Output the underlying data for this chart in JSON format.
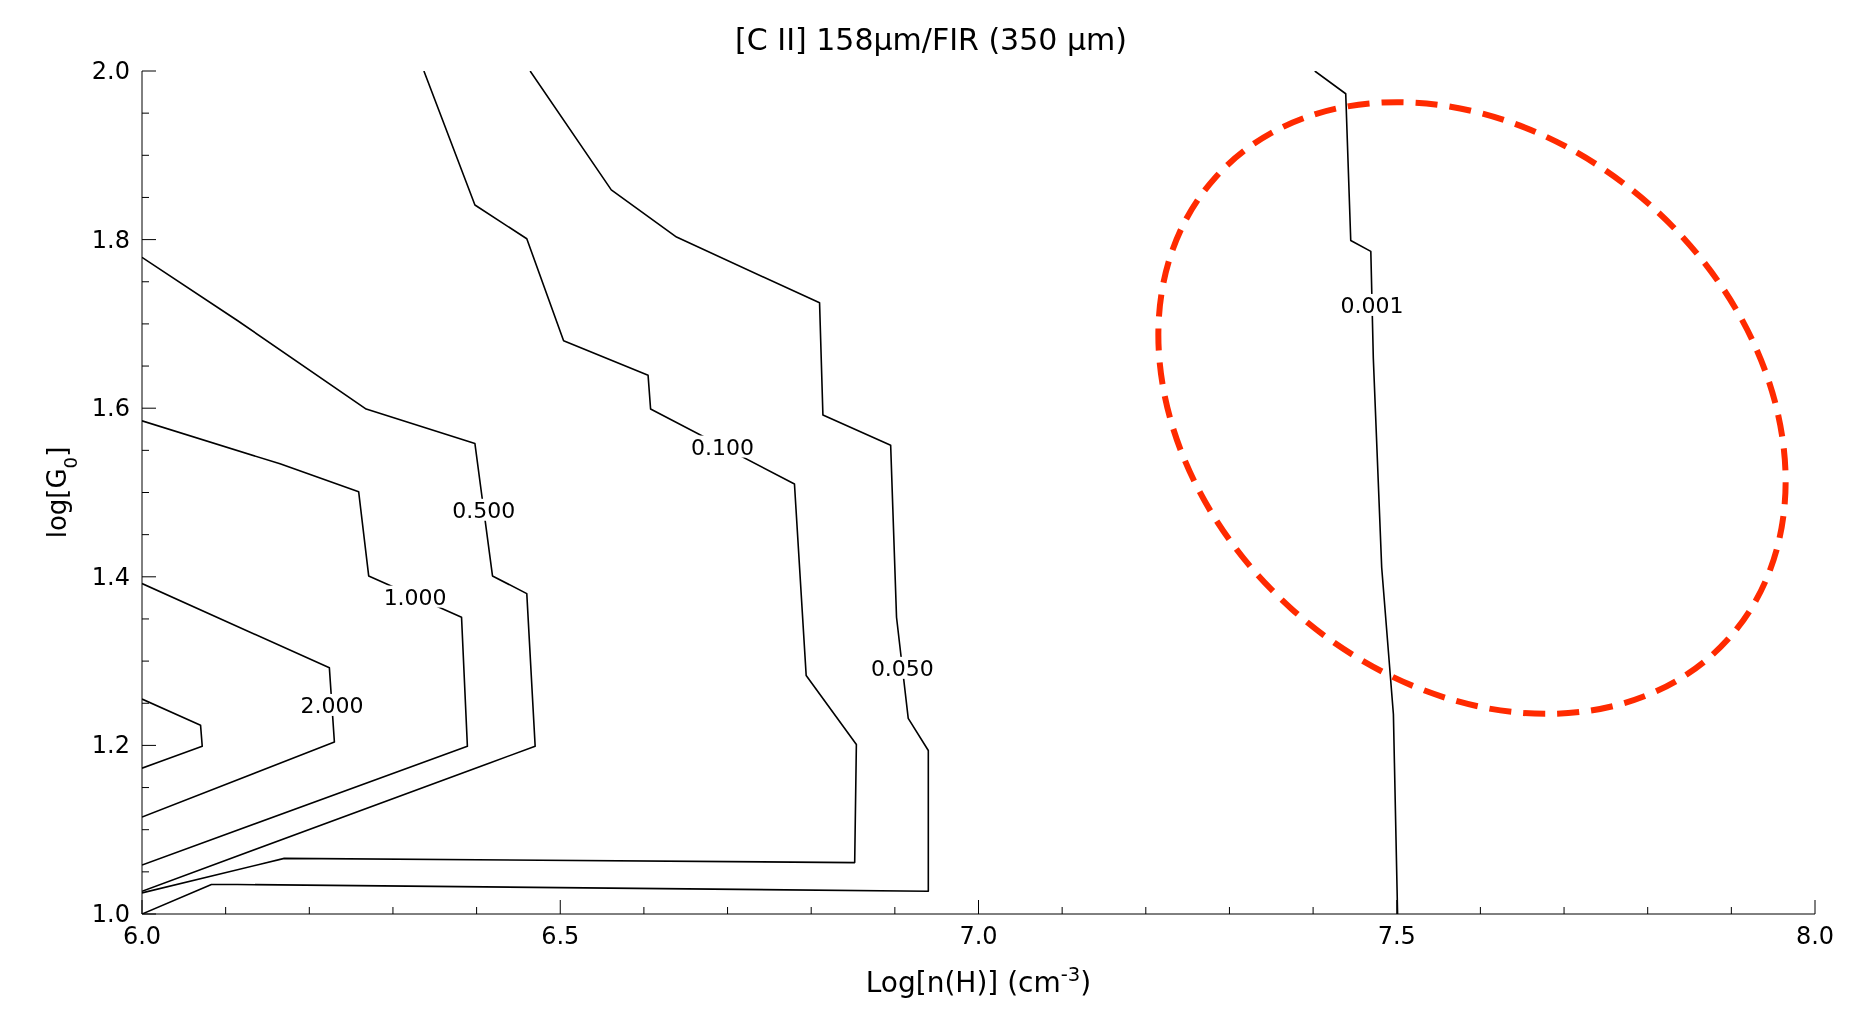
{
  "chart_data": {
    "type": "line",
    "title": "[C II] 158μm/FIR (350 μm)",
    "xlabel": "Log[n(H)] (cm$^{-3}$)",
    "ylabel": "log[G$_{0}$]",
    "xlim": [
      6.0,
      8.0
    ],
    "xticks": [
      "6.0",
      {
        "value": 6.1,
        "label": null
      },
      {
        "value": 6.2,
        "label": null
      },
      {
        "value": 6.3,
        "label": null
      },
      {
        "value": 6.4,
        "label": null
      },
      {
        "value": 6.5,
        "label": "6.5"
      },
      {
        "value": 6.6,
        "label": null
      },
      {
        "value": 6.7,
        "label": null
      },
      {
        "value": 6.8,
        "label": null
      },
      {
        "value": 6.9,
        "label": null
      },
      {
        "value": 7.0,
        "label": "7.0"
      },
      {
        "value": 7.1,
        "label": null
      },
      {
        "value": 7.2,
        "label": null
      },
      {
        "value": 7.3,
        "label": null
      },
      {
        "value": 7.4,
        "label": null
      },
      {
        "value": 7.5,
        "label": "7.5"
      },
      {
        "value": 7.6,
        "label": null
      },
      {
        "value": 7.7,
        "label": null
      },
      {
        "value": 7.8,
        "label": null
      },
      {
        "value": 7.9,
        "label": null
      },
      {
        "value": 8.0,
        "label": "8.0"
      }
    ],
    "ylim": [
      1.0,
      2.0
    ],
    "yticks": [
      {
        "value": 1.0,
        "label": "1.0"
      },
      {
        "value": 1.05,
        "label": null
      },
      {
        "value": 1.1,
        "label": null
      },
      {
        "value": 1.15,
        "label": null
      },
      {
        "value": 1.2,
        "label": "1.2"
      },
      {
        "value": 1.25,
        "label": null
      },
      {
        "value": 1.3,
        "label": null
      },
      {
        "value": 1.35,
        "label": null
      },
      {
        "value": 1.4,
        "label": "1.4"
      },
      {
        "value": 1.45,
        "label": null
      },
      {
        "value": 1.5,
        "label": null
      },
      {
        "value": 1.55,
        "label": null
      },
      {
        "value": 1.6,
        "label": "1.6"
      },
      {
        "value": 1.65,
        "label": null
      },
      {
        "value": 1.7,
        "label": null
      },
      {
        "value": 1.75,
        "label": null
      },
      {
        "value": 1.8,
        "label": "1.8"
      },
      {
        "value": 1.85,
        "label": null
      },
      {
        "value": 1.9,
        "label": null
      },
      {
        "value": 1.95,
        "label": null
      },
      {
        "value": 2.0,
        "label": "2.0"
      }
    ],
    "marker": "none",
    "line_style": "solid",
    "series": [
      {
        "name": "0.050",
        "color": "#000000",
        "x": [
          6.464,
          6.561,
          6.639,
          6.81,
          6.814,
          6.895,
          6.902,
          6.916,
          6.94,
          6.94,
          6.114,
          6.083,
          6.0
        ],
        "values": [
          2.0,
          1.859,
          1.803,
          1.725,
          1.592,
          1.556,
          1.352,
          1.232,
          1.194,
          1.027,
          1.035,
          1.035,
          1.0
        ]
      },
      {
        "name": "0.100",
        "color": "#000000",
        "x": [
          6.337,
          6.398,
          6.46,
          6.504,
          6.605,
          6.608,
          6.78,
          6.794,
          6.854,
          6.852,
          6.17,
          6.0
        ],
        "values": [
          2.0,
          1.841,
          1.801,
          1.68,
          1.639,
          1.599,
          1.51,
          1.283,
          1.201,
          1.061,
          1.066,
          1.025
        ]
      },
      {
        "name": "0.500",
        "color": "#000000",
        "x": [
          6.0,
          6.114,
          6.268,
          6.398,
          6.419,
          6.46,
          6.47,
          6.0
        ],
        "values": [
          1.779,
          1.704,
          1.599,
          1.558,
          1.401,
          1.38,
          1.199,
          1.027
        ]
      },
      {
        "name": "1.000",
        "color": "#000000",
        "x": [
          6.0,
          6.165,
          6.259,
          6.271,
          6.382,
          6.389,
          6.0
        ],
        "values": [
          1.585,
          1.534,
          1.501,
          1.401,
          1.352,
          1.199,
          1.058
        ]
      },
      {
        "name": "2.000",
        "color": "#000000",
        "x": [
          6.0,
          6.224,
          6.23,
          6.0
        ],
        "values": [
          1.392,
          1.292,
          1.204,
          1.115
        ]
      },
      {
        "color": "#000000",
        "x": [
          6.0,
          6.07,
          6.072,
          6.0
        ],
        "values": [
          1.255,
          1.224,
          1.199,
          1.173
        ]
      },
      {
        "name": "0.001",
        "color": "#000000",
        "x": [
          7.402,
          7.439,
          7.445,
          7.469,
          7.472,
          7.482,
          7.496,
          7.501
        ],
        "values": [
          2.0,
          1.973,
          1.799,
          1.786,
          1.659,
          1.411,
          1.237,
          1.0
        ]
      }
    ]
  }
}
